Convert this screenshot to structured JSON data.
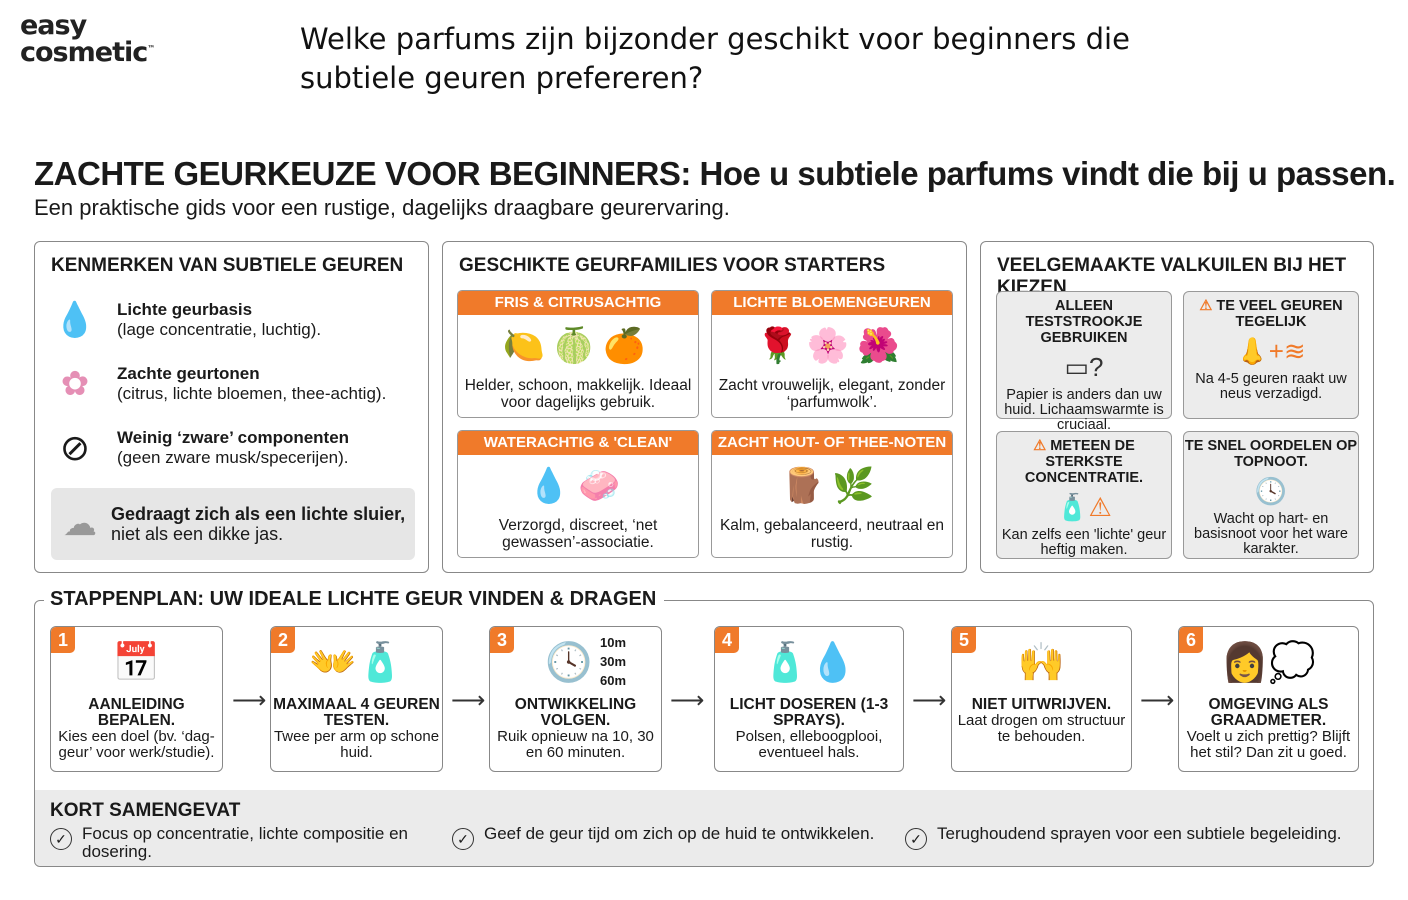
{
  "logo": {
    "line1": "easy",
    "line2": "cosmetic",
    "tm": "™"
  },
  "question": "Welke parfums zijn bijzonder geschikt voor beginners die subtiele geuren prefereren?",
  "title": "ZACHTE GEURKEUZE VOOR BEGINNERS: Hoe u subtiele parfums vindt die bij u passen.",
  "subtitle": "Een praktische gids voor een rustige, dagelijks draagbare geurervaring.",
  "accent": "#f07a2a",
  "kenmerken": {
    "heading": "KENMERKEN VAN SUBTIELE GEUREN",
    "items": [
      {
        "icon": "water-drops-icon",
        "bold": "Lichte geurbasis",
        "text": "(lage concentratie, luchtig)."
      },
      {
        "icon": "flower-icon",
        "bold": "Zachte geurtonen",
        "text": "(citrus, lichte bloemen, thee-achtig)."
      },
      {
        "icon": "no-weight-icon",
        "bold": "Weinig ‘zware’ componenten",
        "text": "(geen zware musk/specerijen)."
      }
    ],
    "quote_bold": "Gedraagt zich als een lichte sluier,",
    "quote_rest": " niet als een dikke jas."
  },
  "families": {
    "heading": "GESCHIKTE GEURFAMILIES VOOR STARTERS",
    "items": [
      {
        "title": "FRIS & CITRUSACHTIG",
        "icons": "🍋🍈🍊",
        "text": "Helder, schoon, makkelijk. Ideaal voor dagelijks gebruik."
      },
      {
        "title": "LICHTE BLOEMENGEUREN",
        "icons": "🌹🌸🌺",
        "text": "Zacht vrouwelijk, elegant, zonder ‘parfumwolk’."
      },
      {
        "title": "WATERACHTIG & 'CLEAN'",
        "icons": "💧🧼",
        "text": "Verzorgd, discreet, ‘net gewassen’-associatie."
      },
      {
        "title": "ZACHT HOUT- OF THEE-NOTEN",
        "icons": "🪵🌿",
        "text": "Kalm, gebalanceerd, neutraal en rustig."
      }
    ]
  },
  "pitfalls": {
    "heading": "VEELGEMAAKTE VALKUILEN BIJ HET KIEZEN",
    "items": [
      {
        "warn": false,
        "title": "ALLEEN TESTSTROOKJE GEBRUIKEN",
        "icon": "▭?",
        "text": "Papier is anders dan uw huid. Lichaamswarmte is cruciaal."
      },
      {
        "warn": true,
        "title": "TE VEEL GEUREN TEGELIJK",
        "icon": "👃+≋",
        "text": "Na 4-5 geuren raakt uw neus verzadigd."
      },
      {
        "warn": true,
        "title": "METEEN DE STERKSTE CONCENTRATIE.",
        "icon": "🧴⚠",
        "text": "Kan zelfs een 'lichte' geur heftig maken."
      },
      {
        "warn": false,
        "title": "TE SNEL OORDELEN OP TOPNOOT.",
        "icon": "🕓",
        "text": "Wacht op hart- en basisnoot voor het ware karakter."
      }
    ]
  },
  "steps": {
    "heading": "STAPPENPLAN: UW IDEALE LICHTE GEUR VINDEN & DRAGEN",
    "items": [
      {
        "num": "1",
        "icon": "📅",
        "title": "AANLEIDING BEPALEN.",
        "text": "Kies een doel (bv. ‘dag-geur’ voor werk/studie)."
      },
      {
        "num": "2",
        "icon": "👐🧴",
        "title": "MAXIMAAL 4 GEUREN TESTEN.",
        "text": "Twee per arm op schone huid."
      },
      {
        "num": "3",
        "icon": "🕓",
        "title": "ONTWIKKELING VOLGEN.",
        "text": "Ruik opnieuw na 10, 30 en 60 minuten.",
        "times": [
          "10m",
          "30m",
          "60m"
        ]
      },
      {
        "num": "4",
        "icon": "🧴💧",
        "title": "LICHT DOSEREN (1-3 SPRAYS).",
        "text": "Polsen, elleboogplooi, eventueel hals."
      },
      {
        "num": "5",
        "icon": "🙌",
        "title": "NIET UITWRIJVEN.",
        "text": "Laat drogen om structuur te behouden."
      },
      {
        "num": "6",
        "icon": "👩💭",
        "title": "OMGEVING ALS GRAADMETER.",
        "text": "Voelt u zich prettig? Blijft het stil? Dan zit u goed."
      }
    ]
  },
  "summary": {
    "heading": "KORT SAMENGEVAT",
    "items": [
      "Focus op concentratie, lichte compositie en dosering.",
      "Geef de geur tijd om zich op de huid te ontwikkelen.",
      "Terughoudend sprayen voor een subtiele begeleiding."
    ]
  }
}
